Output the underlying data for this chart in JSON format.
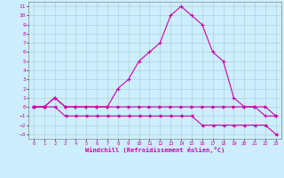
{
  "xlabel": "Windchill (Refroidissement éolien,°C)",
  "background_color": "#cceeff",
  "grid_color": "#aacccc",
  "line_color": "#cc00aa",
  "xlim": [
    -0.5,
    23.5
  ],
  "ylim": [
    -3.5,
    11.5
  ],
  "xticks": [
    0,
    1,
    2,
    3,
    4,
    5,
    6,
    7,
    8,
    9,
    10,
    11,
    12,
    13,
    14,
    15,
    16,
    17,
    18,
    19,
    20,
    21,
    22,
    23
  ],
  "yticks": [
    -3,
    -2,
    -1,
    0,
    1,
    2,
    3,
    4,
    5,
    6,
    7,
    8,
    9,
    10,
    11
  ],
  "line1_x": [
    0,
    1,
    2,
    3,
    4,
    5,
    6,
    7,
    8,
    9,
    10,
    11,
    12,
    13,
    14,
    15,
    16,
    17,
    18,
    19,
    20,
    21,
    22,
    23
  ],
  "line1_y": [
    0,
    0,
    1,
    0,
    0,
    0,
    0,
    0,
    2,
    3,
    5,
    6,
    7,
    10,
    11,
    10,
    9,
    6,
    5,
    1,
    0,
    0,
    -1,
    -1
  ],
  "line2_x": [
    0,
    1,
    2,
    3,
    4,
    5,
    6,
    7,
    8,
    9,
    10,
    11,
    12,
    13,
    14,
    15,
    16,
    17,
    18,
    19,
    20,
    21,
    22,
    23
  ],
  "line2_y": [
    0,
    0,
    1,
    0,
    0,
    0,
    0,
    0,
    0,
    0,
    0,
    0,
    0,
    0,
    0,
    0,
    0,
    0,
    0,
    0,
    0,
    0,
    0,
    -1
  ],
  "line3_x": [
    0,
    1,
    2,
    3,
    4,
    5,
    6,
    7,
    8,
    9,
    10,
    11,
    12,
    13,
    14,
    15,
    16,
    17,
    18,
    19,
    20,
    21,
    22,
    23
  ],
  "line3_y": [
    0,
    0,
    0,
    -1,
    -1,
    -1,
    -1,
    -1,
    -1,
    -1,
    -1,
    -1,
    -1,
    -1,
    -1,
    -1,
    -2,
    -2,
    -2,
    -2,
    -2,
    -2,
    -2,
    -3
  ]
}
